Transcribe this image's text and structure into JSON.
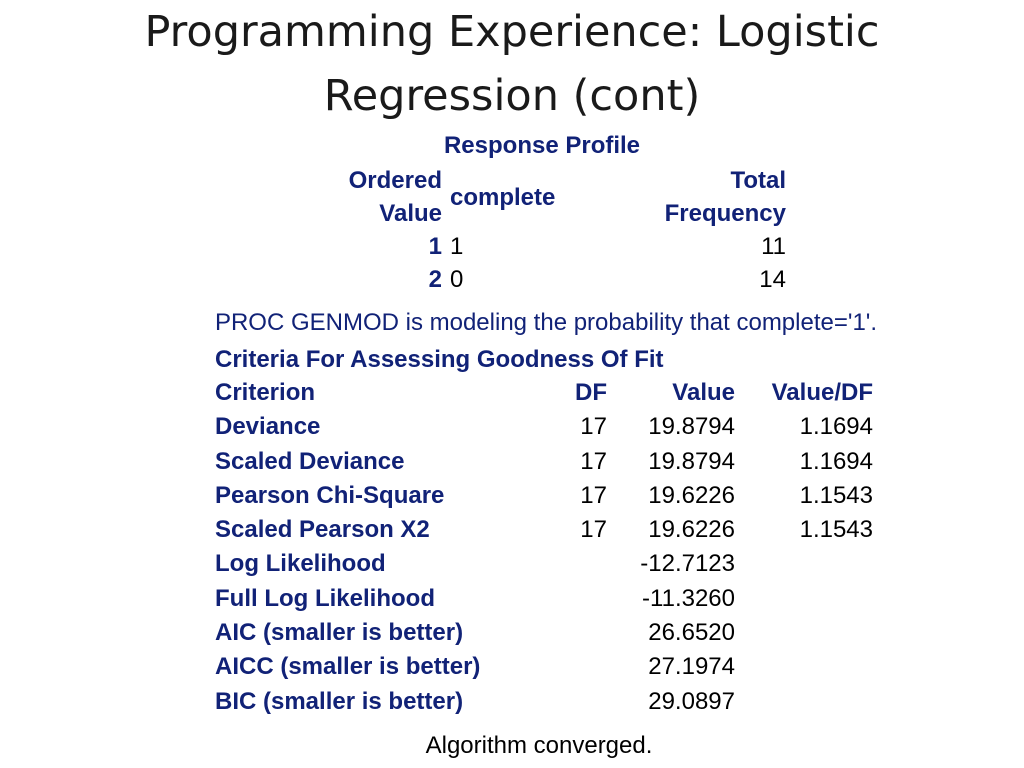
{
  "slide": {
    "title_line1": "Programming Experience: Logistic",
    "title_line2": "Regression (cont)"
  },
  "response_profile": {
    "title": "Response Profile",
    "headers": {
      "ordered_value_line1": "Ordered",
      "ordered_value_line2": "Value",
      "complete": "complete",
      "total_frequency_line1": "Total",
      "total_frequency_line2": "Frequency"
    },
    "rows": [
      {
        "ordered_value": "1",
        "complete": "1",
        "total_frequency": "11"
      },
      {
        "ordered_value": "2",
        "complete": "0",
        "total_frequency": "14"
      }
    ]
  },
  "modeling_note": "PROC GENMOD is modeling the probability that complete='1'.",
  "goodness_of_fit": {
    "title": "Criteria For Assessing Goodness Of Fit",
    "headers": {
      "criterion": "Criterion",
      "df": "DF",
      "value": "Value",
      "value_df": "Value/DF"
    },
    "rows": [
      {
        "criterion": "Deviance",
        "df": "17",
        "value": "19.8794",
        "value_df": "1.1694"
      },
      {
        "criterion": "Scaled Deviance",
        "df": "17",
        "value": "19.8794",
        "value_df": "1.1694"
      },
      {
        "criterion": "Pearson Chi-Square",
        "df": "17",
        "value": "19.6226",
        "value_df": "1.1543"
      },
      {
        "criterion": "Scaled Pearson X2",
        "df": "17",
        "value": "19.6226",
        "value_df": "1.1543"
      },
      {
        "criterion": "Log Likelihood",
        "df": "",
        "value": "-12.7123",
        "value_df": ""
      },
      {
        "criterion": "Full Log Likelihood",
        "df": "",
        "value": "-11.3260",
        "value_df": ""
      },
      {
        "criterion": "AIC (smaller is better)",
        "df": "",
        "value": "26.6520",
        "value_df": ""
      },
      {
        "criterion": "AICC (smaller is better)",
        "df": "",
        "value": "27.1974",
        "value_df": ""
      },
      {
        "criterion": "BIC (smaller is better)",
        "df": "",
        "value": "29.0897",
        "value_df": ""
      }
    ]
  },
  "footer": "Algorithm converged."
}
